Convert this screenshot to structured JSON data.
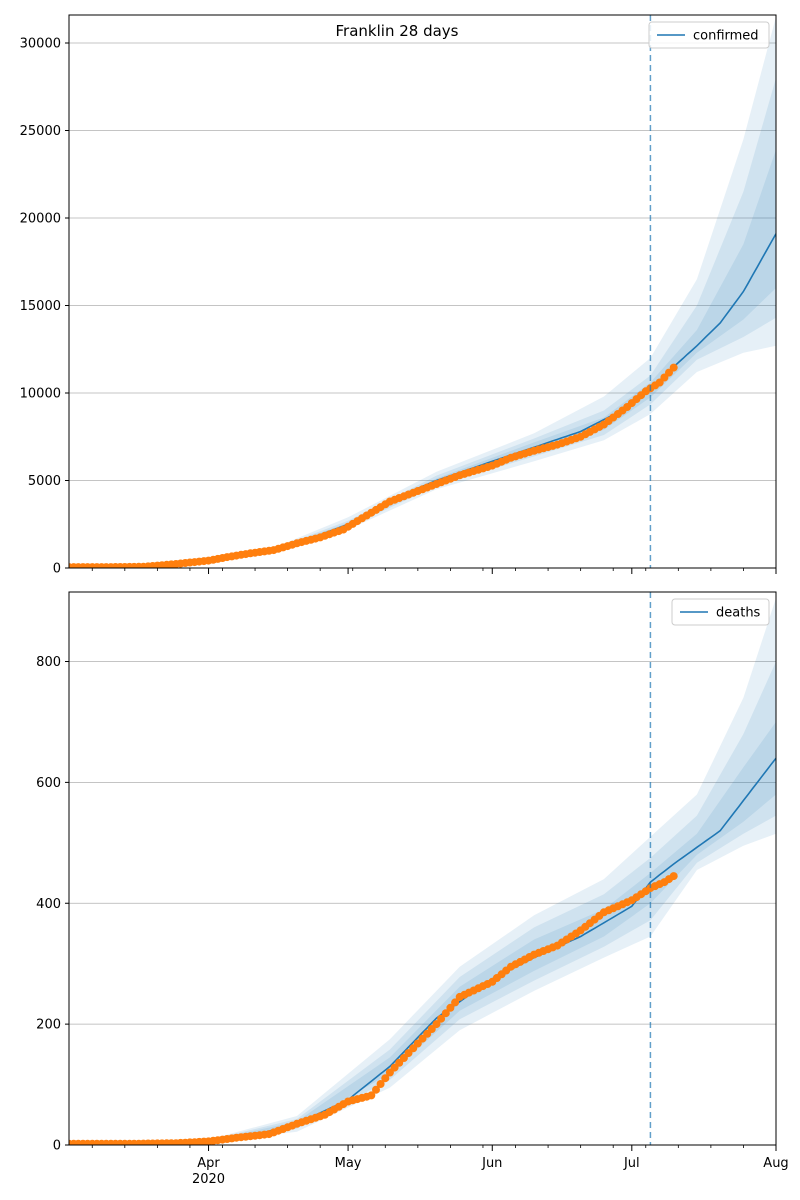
{
  "chart_data": [
    {
      "type": "line",
      "title": "Franklin 28 days",
      "legend": {
        "label": "confirmed",
        "placement": "top-right"
      },
      "xlabel": "",
      "ylabel": "",
      "x_range": [
        "2020-03-02",
        "2020-08-01"
      ],
      "ylim": [
        0,
        31600
      ],
      "y_ticks": [
        0,
        5000,
        10000,
        15000,
        20000,
        25000,
        30000
      ],
      "grid": "horizontal",
      "forecast_start": "2020-07-05",
      "series": [
        {
          "name": "confirmed",
          "style": "line",
          "x": [
            "2020-03-02",
            "2020-03-15",
            "2020-03-25",
            "2020-04-01",
            "2020-04-10",
            "2020-04-20",
            "2020-05-01",
            "2020-05-10",
            "2020-05-20",
            "2020-06-01",
            "2020-06-10",
            "2020-06-20",
            "2020-07-01",
            "2020-07-05",
            "2020-07-10",
            "2020-07-15",
            "2020-07-20",
            "2020-07-25",
            "2020-08-01"
          ],
          "y": [
            50,
            60,
            150,
            450,
            800,
            1400,
            2500,
            3900,
            5000,
            6100,
            6900,
            7800,
            9300,
            10200,
            11500,
            12700,
            14000,
            15800,
            19100
          ]
        },
        {
          "style": "points",
          "x": [
            "2020-03-02",
            "2020-03-10",
            "2020-03-18",
            "2020-03-25",
            "2020-04-01",
            "2020-04-05",
            "2020-04-10",
            "2020-04-15",
            "2020-04-20",
            "2020-04-25",
            "2020-04-30",
            "2020-05-05",
            "2020-05-10",
            "2020-05-15",
            "2020-05-20",
            "2020-05-25",
            "2020-06-01",
            "2020-06-05",
            "2020-06-10",
            "2020-06-15",
            "2020-06-20",
            "2020-06-25",
            "2020-06-30",
            "2020-07-04",
            "2020-07-07",
            "2020-07-10"
          ],
          "y": [
            50,
            50,
            70,
            230,
            420,
            620,
            840,
            1020,
            1410,
            1750,
            2200,
            3000,
            3800,
            4300,
            4800,
            5300,
            5850,
            6300,
            6700,
            7050,
            7500,
            8200,
            9200,
            10100,
            10600,
            11450
          ]
        }
      ],
      "intervals": [
        {
          "x": [
            "2020-03-02",
            "2020-03-25",
            "2020-04-15",
            "2020-05-01",
            "2020-05-20",
            "2020-06-10",
            "2020-06-25",
            "2020-07-05",
            "2020-07-15",
            "2020-07-25",
            "2020-08-01"
          ],
          "lower": [
            50,
            140,
            900,
            2200,
            4500,
            6100,
            7300,
            8800,
            11200,
            12300,
            12700
          ],
          "upper": [
            50,
            170,
            1150,
            2900,
            5500,
            7700,
            9800,
            12000,
            16500,
            24500,
            31500
          ]
        },
        {
          "x": [
            "2020-03-02",
            "2020-03-25",
            "2020-04-15",
            "2020-05-01",
            "2020-05-20",
            "2020-06-10",
            "2020-06-25",
            "2020-07-05",
            "2020-07-15",
            "2020-07-25",
            "2020-08-01"
          ],
          "lower": [
            50,
            142,
            950,
            2320,
            4700,
            6380,
            7600,
            9350,
            11900,
            13200,
            14300
          ],
          "upper": [
            50,
            165,
            1100,
            2700,
            5280,
            7400,
            9000,
            11000,
            15000,
            21500,
            28000
          ]
        },
        {
          "x": [
            "2020-03-02",
            "2020-03-25",
            "2020-04-15",
            "2020-05-01",
            "2020-05-20",
            "2020-06-10",
            "2020-06-25",
            "2020-07-05",
            "2020-07-15",
            "2020-07-25",
            "2020-08-01"
          ],
          "lower": [
            50,
            145,
            1000,
            2400,
            4850,
            6600,
            7900,
            9750,
            12300,
            14200,
            16000
          ],
          "upper": [
            50,
            158,
            1060,
            2580,
            5120,
            7180,
            8600,
            10600,
            13600,
            18500,
            23900
          ]
        }
      ]
    },
    {
      "type": "line",
      "legend": {
        "label": "deaths",
        "placement": "top-right"
      },
      "xlabel": "",
      "ylabel": "",
      "x_range": [
        "2020-03-02",
        "2020-08-01"
      ],
      "ylim": [
        0,
        915
      ],
      "y_ticks": [
        0,
        200,
        400,
        600,
        800
      ],
      "grid": "horizontal",
      "forecast_start": "2020-07-05",
      "x_ticks": [
        {
          "date": "2020-04-01",
          "label": "Apr",
          "sublabel": "2020"
        },
        {
          "date": "2020-05-01",
          "label": "May"
        },
        {
          "date": "2020-06-01",
          "label": "Jun"
        },
        {
          "date": "2020-07-01",
          "label": "Jul"
        },
        {
          "date": "2020-08-01",
          "label": "Aug"
        }
      ],
      "series": [
        {
          "name": "deaths",
          "style": "line",
          "x": [
            "2020-03-02",
            "2020-03-20",
            "2020-04-01",
            "2020-04-10",
            "2020-04-20",
            "2020-05-01",
            "2020-05-10",
            "2020-05-20",
            "2020-06-01",
            "2020-06-10",
            "2020-06-20",
            "2020-07-01",
            "2020-07-05",
            "2020-07-10",
            "2020-07-20",
            "2020-07-25",
            "2020-08-01"
          ],
          "y": [
            2,
            3,
            6,
            15,
            35,
            75,
            130,
            210,
            275,
            310,
            345,
            395,
            435,
            465,
            520,
            570,
            640
          ]
        },
        {
          "style": "points",
          "x": [
            "2020-03-02",
            "2020-03-15",
            "2020-03-25",
            "2020-04-01",
            "2020-04-07",
            "2020-04-14",
            "2020-04-20",
            "2020-04-26",
            "2020-05-01",
            "2020-05-06",
            "2020-05-10",
            "2020-05-15",
            "2020-05-20",
            "2020-05-25",
            "2020-06-01",
            "2020-06-05",
            "2020-06-10",
            "2020-06-15",
            "2020-06-20",
            "2020-06-25",
            "2020-07-01",
            "2020-07-05",
            "2020-07-08",
            "2020-07-10"
          ],
          "y": [
            2,
            2,
            3,
            6,
            12,
            18,
            35,
            50,
            72,
            82,
            120,
            160,
            200,
            245,
            270,
            295,
            315,
            330,
            355,
            385,
            405,
            425,
            435,
            445
          ]
        }
      ],
      "intervals": [
        {
          "x": [
            "2020-03-02",
            "2020-04-01",
            "2020-04-20",
            "2020-05-10",
            "2020-05-25",
            "2020-06-10",
            "2020-06-25",
            "2020-07-05",
            "2020-07-15",
            "2020-07-25",
            "2020-08-01"
          ],
          "lower": [
            2,
            4,
            22,
            95,
            190,
            255,
            310,
            345,
            455,
            495,
            515
          ],
          "upper": [
            2,
            9,
            48,
            175,
            295,
            380,
            440,
            510,
            580,
            740,
            905
          ]
        },
        {
          "x": [
            "2020-03-02",
            "2020-04-01",
            "2020-04-20",
            "2020-05-10",
            "2020-05-25",
            "2020-06-10",
            "2020-06-25",
            "2020-07-05",
            "2020-07-15",
            "2020-07-25",
            "2020-08-01"
          ],
          "lower": [
            2,
            5,
            27,
            108,
            208,
            272,
            328,
            372,
            467,
            515,
            545
          ],
          "upper": [
            2,
            8,
            43,
            158,
            278,
            360,
            415,
            475,
            545,
            680,
            800
          ]
        },
        {
          "x": [
            "2020-03-02",
            "2020-04-01",
            "2020-04-20",
            "2020-05-10",
            "2020-05-25",
            "2020-06-10",
            "2020-06-25",
            "2020-07-05",
            "2020-07-15",
            "2020-07-25",
            "2020-08-01"
          ],
          "lower": [
            2,
            5,
            31,
            118,
            222,
            288,
            345,
            400,
            480,
            535,
            580
          ],
          "upper": [
            2,
            7,
            39,
            145,
            262,
            340,
            390,
            450,
            515,
            625,
            700
          ]
        }
      ]
    }
  ]
}
